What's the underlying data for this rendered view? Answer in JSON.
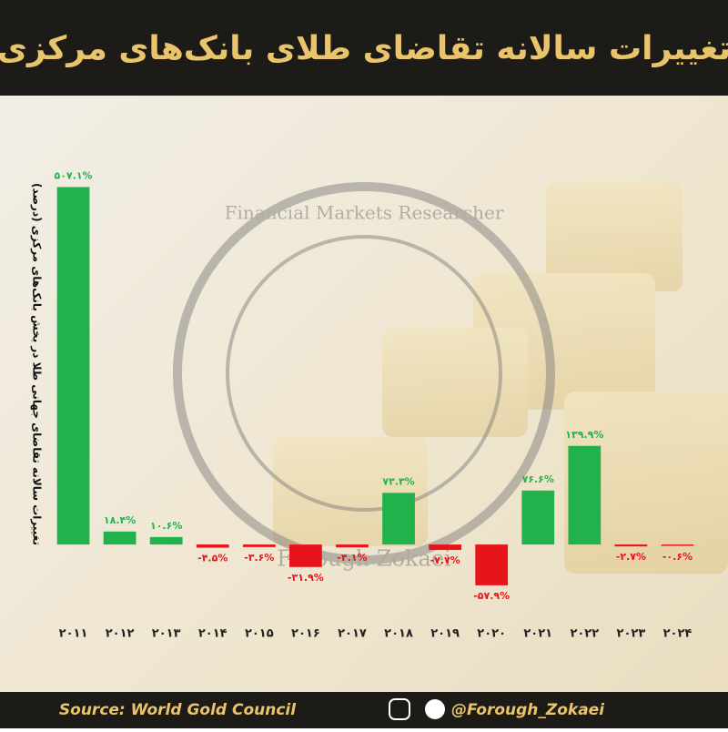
{
  "chart_data": {
    "type": "bar",
    "title": "تغییرات سالانه تقاضای طلای بانک‌های مرکزی",
    "y_label": "تغییرات سالانه تقاضای جهانی طلا در بخش بانک‌های مرکزی (درصد)",
    "categories": [
      "۲۰۱۱",
      "۲۰۱۲",
      "۲۰۱۳",
      "۲۰۱۴",
      "۲۰۱۵",
      "۲۰۱۶",
      "۲۰۱۷",
      "۲۰۱۸",
      "۲۰۱۹",
      "۲۰۲۰",
      "۲۰۲۱",
      "۲۰۲۲",
      "۲۰۲۳",
      "۲۰۲۴"
    ],
    "values": [
      507.1,
      18.4,
      10.6,
      -4.5,
      -3.6,
      -31.9,
      -4.1,
      73.3,
      -7.7,
      -57.9,
      76.6,
      139.9,
      -2.7,
      -0.6
    ],
    "value_labels": [
      "۵۰۷.۱%",
      "۱۸.۴%",
      "۱۰.۶%",
      "-۴.۵%",
      "-۳.۶%",
      "-۳۱.۹%",
      "-۴.۱%",
      "۷۳.۳%",
      "-۷.۷%",
      "-۵۷.۹%",
      "۷۶.۶%",
      "۱۳۹.۹%",
      "-۲.۷%",
      "-۰.۶%"
    ],
    "positive_color": "#22b24c",
    "negative_color": "#e8141b",
    "ylim": [
      -80,
      540
    ],
    "source": "Source: World Gold Council",
    "handle": "@Forough_Zokaei",
    "watermark": [
      "Financial Markets Researcher",
      "Forough Zokaei"
    ]
  }
}
